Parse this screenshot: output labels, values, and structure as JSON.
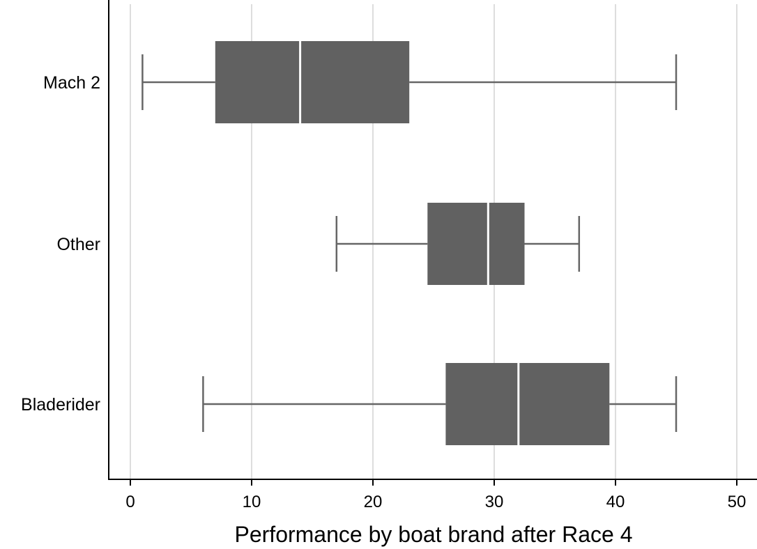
{
  "chart_data": {
    "type": "boxplot",
    "orientation": "horizontal",
    "xlabel": "Performance by boat brand after Race 4",
    "ylabel": "",
    "title": "",
    "xlim": [
      0,
      50
    ],
    "xticks": [
      0,
      10,
      20,
      30,
      40,
      50
    ],
    "grid": true,
    "categories": [
      "Mach 2",
      "Other",
      "Bladerider"
    ],
    "boxes": [
      {
        "category": "Mach 2",
        "min": 1,
        "q1": 7,
        "median": 14,
        "q3": 23,
        "max": 45
      },
      {
        "category": "Other",
        "min": 17,
        "q1": 24.5,
        "median": 29.5,
        "q3": 32.5,
        "max": 37
      },
      {
        "category": "Bladerider",
        "min": 6,
        "q1": 26,
        "median": 32,
        "q3": 39.5,
        "max": 45
      }
    ],
    "colors": {
      "box": "#616161",
      "whisker": "#666666",
      "median": "#ffffff",
      "grid": "#dddddd",
      "axis": "#000000"
    }
  }
}
